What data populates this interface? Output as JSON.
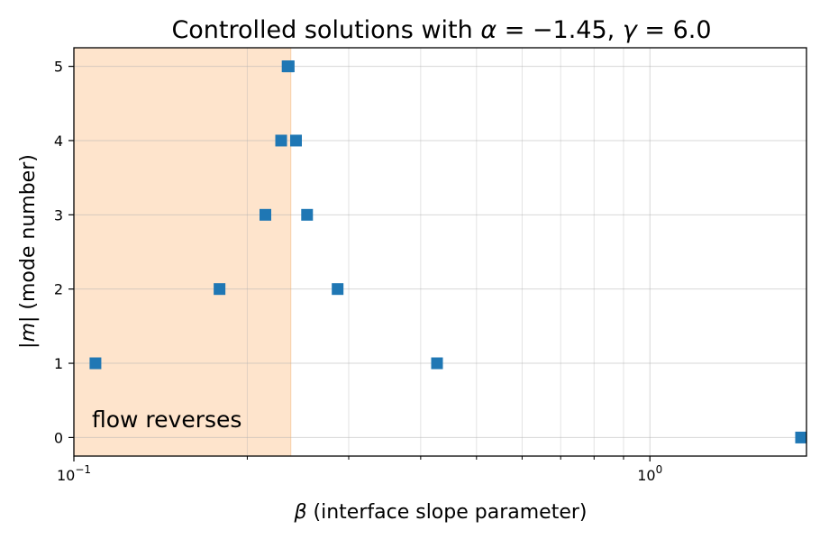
{
  "chart_data": {
    "type": "scatter",
    "title": {
      "prefix": "Controlled solutions with ",
      "alpha_symbol": "α",
      "alpha_value": " = −1.45, ",
      "gamma_symbol": "γ",
      "gamma_value": " = 6.0"
    },
    "xlabel": {
      "symbol": "β",
      "text": " (interface slope parameter)"
    },
    "ylabel": {
      "prefix": "|",
      "symbol": "m",
      "suffix": "| (mode number)"
    },
    "xscale": "log",
    "xlim": [
      0.1,
      1.87
    ],
    "ylim": [
      -0.25,
      5.25
    ],
    "yticks": [
      0,
      1,
      2,
      3,
      4,
      5
    ],
    "xticks_major": [
      {
        "value": 0.1,
        "base": "10",
        "exp": "−1"
      },
      {
        "value": 1.0,
        "base": "10",
        "exp": "0"
      }
    ],
    "xticks_minor": [
      0.2,
      0.3,
      0.4,
      0.5,
      0.6,
      0.7,
      0.8,
      0.9
    ],
    "grid": true,
    "marker": "square",
    "marker_color": "#1f77b4",
    "shaded_region": {
      "x_range": [
        0.1,
        0.238
      ],
      "color": "#fee4cc",
      "label": "flow reverses"
    },
    "points": [
      {
        "x": 0.109,
        "y": 1
      },
      {
        "x": 0.179,
        "y": 2
      },
      {
        "x": 0.215,
        "y": 3
      },
      {
        "x": 0.229,
        "y": 4
      },
      {
        "x": 0.235,
        "y": 5
      },
      {
        "x": 0.236,
        "y": 5
      },
      {
        "x": 0.243,
        "y": 4
      },
      {
        "x": 0.254,
        "y": 3
      },
      {
        "x": 0.287,
        "y": 2
      },
      {
        "x": 0.427,
        "y": 1
      },
      {
        "x": 1.83,
        "y": 0
      }
    ]
  }
}
